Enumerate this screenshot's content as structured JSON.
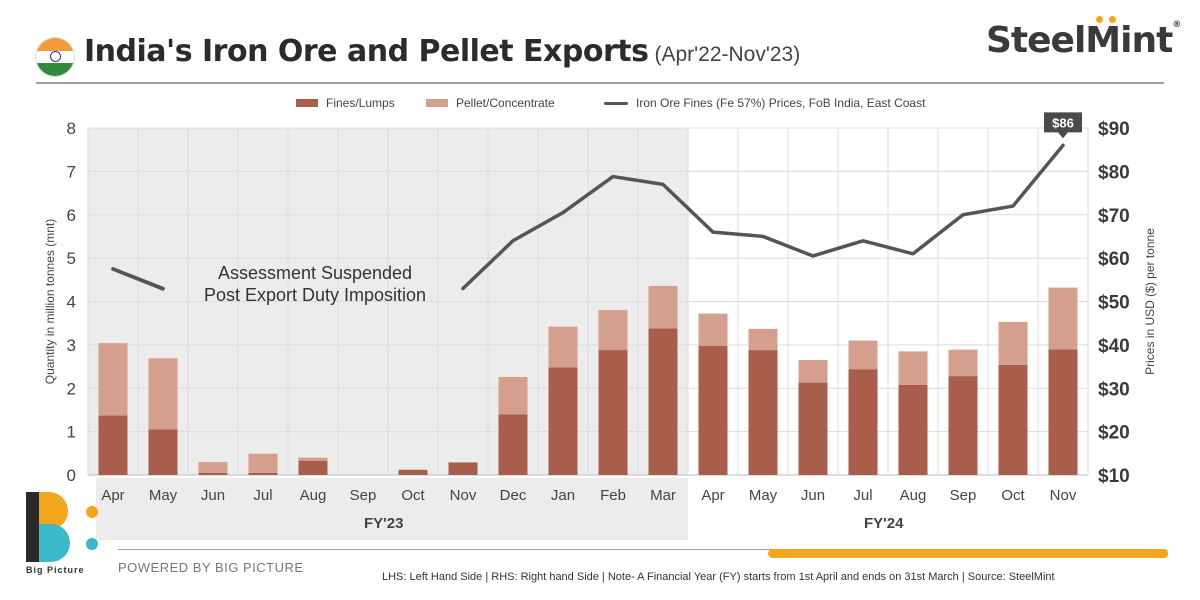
{
  "header": {
    "title": "India's Iron Ore and Pellet Exports",
    "subtitle": "(Apr'22-Nov'23)",
    "brand": "SteelMint",
    "brand_reg": "®"
  },
  "chart_data": {
    "type": "bar",
    "stacked": true,
    "categories": [
      "Apr",
      "May",
      "Jun",
      "Jul",
      "Aug",
      "Sep",
      "Oct",
      "Nov",
      "Dec",
      "Jan",
      "Feb",
      "Mar",
      "Apr",
      "May",
      "Jun",
      "Jul",
      "Aug",
      "Sep",
      "Oct",
      "Nov"
    ],
    "series": [
      {
        "name": "Fines/Lumps",
        "type": "bar",
        "color": "#a85e4a",
        "values": [
          1.37,
          1.05,
          0.05,
          0.05,
          0.33,
          0,
          0.12,
          0.29,
          1.4,
          2.48,
          2.88,
          3.38,
          2.98,
          2.88,
          2.13,
          2.44,
          2.08,
          2.28,
          2.54,
          2.9
        ]
      },
      {
        "name": "Pellet/Concentrate",
        "type": "bar",
        "color": "#d49f8c",
        "values": [
          1.67,
          1.64,
          0.25,
          0.44,
          0.07,
          0,
          0,
          0,
          0.86,
          0.94,
          0.92,
          0.98,
          0.74,
          0.49,
          0.52,
          0.66,
          0.77,
          0.61,
          0.99,
          1.42
        ]
      },
      {
        "name": "Iron Ore Fines (Fe 57%) Prices, FoB India, East Coast",
        "type": "line",
        "axis": "right",
        "color": "#555555",
        "values": [
          57.5,
          53,
          null,
          null,
          null,
          null,
          null,
          53,
          64,
          70.5,
          78.8,
          77,
          66,
          65,
          60.5,
          64,
          61,
          70,
          72,
          86
        ]
      }
    ],
    "ylabel": "Quantity in million tonnes (mnt)",
    "ylim": [
      0,
      8
    ],
    "yticks": [
      "0",
      "1",
      "2",
      "3",
      "4",
      "5",
      "6",
      "7",
      "8"
    ],
    "y2label": "Prices in USD ($) per tonne",
    "y2lim": [
      10,
      90
    ],
    "y2ticks": [
      "$10",
      "$20",
      "$30",
      "$40",
      "$50",
      "$60",
      "$70",
      "$80",
      "$90"
    ],
    "groups": [
      {
        "label": "FY'23",
        "start": 0,
        "end": 11
      },
      {
        "label": "FY'24",
        "start": 12,
        "end": 19
      }
    ],
    "callout": "$86",
    "annotation": [
      "Assessment Suspended",
      "Post Export Duty Imposition"
    ],
    "legend_position": "top",
    "grid": true
  },
  "footer": {
    "powered_by": "POWERED BY BIG PICTURE",
    "logo_text": "Big Picture",
    "note": "LHS: Left Hand Side  |  RHS: Right hand Side  |  Note- A Financial Year (FY) starts from 1st April and ends on 31st March  |  Source: SteelMint"
  }
}
